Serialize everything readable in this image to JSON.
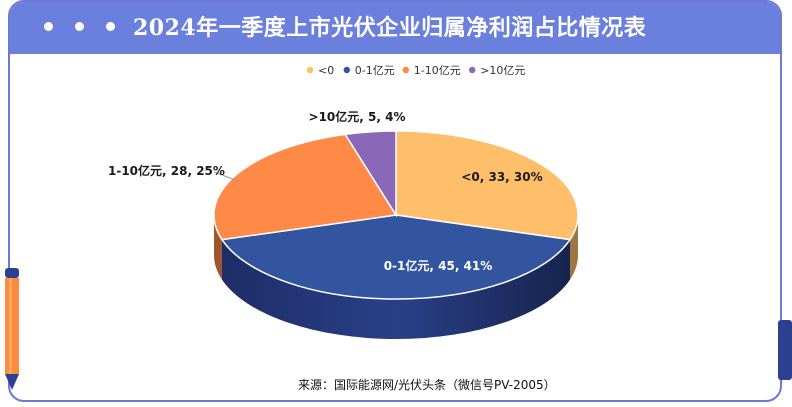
{
  "title": "2024年一季度上市光伏企业归属净利润占比情况表",
  "source": "来源：国际能源网/光伏头条（微信号PV-2005）",
  "chart_data": {
    "type": "pie",
    "categories": [
      "<0",
      "0-1亿元",
      "1-10亿元",
      ">10亿元"
    ],
    "values": [
      33,
      45,
      28,
      5
    ],
    "percentages": [
      30,
      41,
      25,
      4
    ],
    "labels": [
      "<0, 33, 30%",
      "0-1亿元, 45, 41%",
      "1-10亿元, 28, 25%",
      ">10亿元, 5, 4%"
    ],
    "legend_position": "top-center",
    "colors": [
      "#ffbe6a",
      "#3355a0",
      "#ff8a48",
      "#8a68b7"
    ],
    "style": "3d"
  }
}
